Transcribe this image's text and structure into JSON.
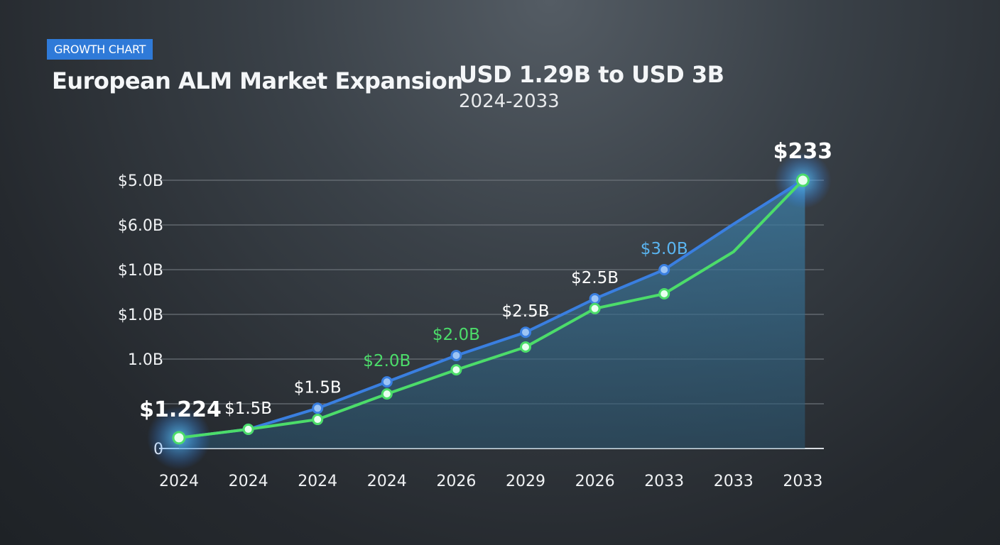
{
  "header": {
    "badge": "GROWTH CHART",
    "title": "European ALM Market Expansion",
    "subtitle": "USD 1.29B to USD 3B",
    "period": "2024-2033"
  },
  "chart_data": {
    "type": "line",
    "title": "European ALM Market Expansion",
    "categories": [
      "2024",
      "2024",
      "2024",
      "2024",
      "2026",
      "2029",
      "2026",
      "2033",
      "2033",
      "2033"
    ],
    "y_tick_labels": [
      "0",
      "",
      "1.0B",
      "$1.0B",
      "$1.0B",
      "$6.0B",
      "$5.0B"
    ],
    "ylim": [
      0,
      6
    ],
    "grid": true,
    "series": [
      {
        "color": "#3a7fe0",
        "values": [
          0.24,
          0.43,
          0.9,
          1.49,
          2.08,
          2.6,
          3.35,
          4.0,
          5.02,
          6.0
        ],
        "markers": [
          true,
          true,
          true,
          true,
          true,
          true,
          true,
          true,
          false,
          true
        ]
      },
      {
        "color": "#4cdc6a",
        "values": [
          0.24,
          0.43,
          0.65,
          1.22,
          1.76,
          2.27,
          3.13,
          3.46,
          4.4,
          6.0
        ],
        "markers": [
          true,
          true,
          true,
          true,
          true,
          true,
          true,
          true,
          false,
          true
        ]
      }
    ],
    "annotations": [
      {
        "index": 0,
        "text": "$1.224",
        "color": "#ffffff"
      },
      {
        "index": 1,
        "text": "$1.5B",
        "color": "#ffffff"
      },
      {
        "index": 2,
        "text": "$1.5B",
        "color": "#ffffff"
      },
      {
        "index": 3,
        "text": "$2.0B",
        "color": "#4cdc6a"
      },
      {
        "index": 4,
        "text": "$2.0B",
        "color": "#4cdc6a"
      },
      {
        "index": 5,
        "text": "$2.5B",
        "color": "#ffffff"
      },
      {
        "index": 6,
        "text": "$2.5B",
        "color": "#ffffff"
      },
      {
        "index": 7,
        "text": "$3.0B",
        "color": "#5ab4f0"
      },
      {
        "index": 9,
        "text": "$233",
        "color": "#ffffff"
      }
    ]
  }
}
